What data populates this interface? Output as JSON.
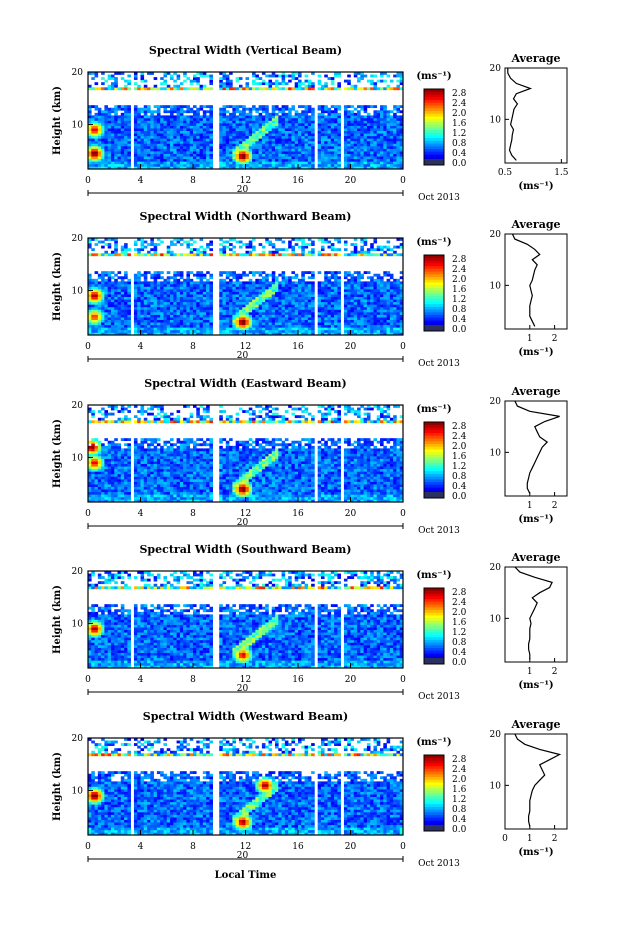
{
  "figure": {
    "xlabel": "Local Time",
    "date_label": "Oct 2013",
    "day_label": "20",
    "colorbar_unit": "(ms⁻¹)",
    "colorbar_ticks": [
      "0.0",
      "0.4",
      "0.8",
      "1.2",
      "1.6",
      "2.0",
      "2.4",
      "2.8"
    ],
    "ylabel": "Height (km)",
    "avg_title": "Average",
    "avg_xlabel": "(ms⁻¹)"
  },
  "chart_data": [
    {
      "type": "heatmap",
      "title": "Spectral Width (Vertical Beam)",
      "xlabel": "Local Time",
      "ylabel": "Height (km)",
      "xlim": [
        0,
        24
      ],
      "ylim": [
        1.5,
        20
      ],
      "x_ticks": [
        "0",
        "4",
        "8",
        "12",
        "16",
        "20",
        "0"
      ],
      "y_ticks": [
        "10",
        "20"
      ],
      "z_range": [
        0.0,
        2.8
      ],
      "z_unit": "ms⁻¹",
      "data_gaps_hours": [
        [
          3.3,
          3.6
        ],
        [
          5.9,
          6.1
        ],
        [
          9.6,
          9.9
        ],
        [
          17.3,
          17.6
        ],
        [
          19.3,
          19.6
        ],
        [
          20.9,
          21.1
        ]
      ],
      "hotspots": [
        {
          "time": 0.5,
          "height": 4.5,
          "value": 2.8
        },
        {
          "time": 0.5,
          "height": 9,
          "value": 2.4
        },
        {
          "time": 11.8,
          "height": 4,
          "value": 2.8
        }
      ],
      "average_profile": {
        "xlim": [
          0.5,
          1.6
        ],
        "x_ticks": [
          "0.5",
          "1.5"
        ],
        "y_ticks": [
          "10",
          "20"
        ],
        "height_km": [
          2,
          3,
          4,
          5,
          6,
          7,
          8,
          9,
          10,
          11,
          12,
          13,
          14,
          15,
          16,
          17,
          18,
          19,
          20
        ],
        "values": [
          0.7,
          0.62,
          0.58,
          0.6,
          0.62,
          0.63,
          0.65,
          0.6,
          0.62,
          0.64,
          0.66,
          0.72,
          0.65,
          0.7,
          0.95,
          0.7,
          0.6,
          0.55,
          0.55
        ]
      }
    },
    {
      "type": "heatmap",
      "title": "Spectral Width (Northward Beam)",
      "xlabel": "Local Time",
      "ylabel": "Height (km)",
      "xlim": [
        0,
        24
      ],
      "ylim": [
        1.5,
        20
      ],
      "x_ticks": [
        "0",
        "4",
        "8",
        "12",
        "16",
        "20",
        "0"
      ],
      "y_ticks": [
        "10",
        "20"
      ],
      "z_range": [
        0.0,
        2.8
      ],
      "z_unit": "ms⁻¹",
      "data_gaps_hours": [
        [
          3.3,
          3.6
        ],
        [
          5.9,
          6.1
        ],
        [
          9.6,
          9.9
        ],
        [
          17.3,
          17.6
        ],
        [
          19.3,
          19.6
        ],
        [
          20.9,
          21.1
        ]
      ],
      "hotspots": [
        {
          "time": 0.5,
          "height": 9,
          "value": 2.6
        },
        {
          "time": 0.5,
          "height": 5,
          "value": 2.2
        },
        {
          "time": 11.8,
          "height": 4,
          "value": 2.8
        }
      ],
      "average_profile": {
        "xlim": [
          0,
          2.5
        ],
        "x_ticks": [
          "1",
          "2"
        ],
        "y_ticks": [
          "10",
          "20"
        ],
        "height_km": [
          2,
          3,
          4,
          5,
          6,
          7,
          8,
          9,
          10,
          11,
          12,
          13,
          14,
          15,
          16,
          17,
          18,
          19,
          20
        ],
        "values": [
          1.2,
          1.1,
          1.0,
          1.0,
          1.0,
          1.05,
          1.1,
          1.05,
          1.0,
          1.1,
          1.15,
          1.2,
          1.3,
          1.1,
          1.4,
          1.2,
          0.9,
          0.4,
          0.3
        ]
      }
    },
    {
      "type": "heatmap",
      "title": "Spectral Width (Eastward Beam)",
      "xlabel": "Local Time",
      "ylabel": "Height (km)",
      "xlim": [
        0,
        24
      ],
      "ylim": [
        1.5,
        20
      ],
      "x_ticks": [
        "0",
        "4",
        "8",
        "12",
        "16",
        "20",
        "0"
      ],
      "y_ticks": [
        "10",
        "20"
      ],
      "z_range": [
        0.0,
        2.8
      ],
      "z_unit": "ms⁻¹",
      "data_gaps_hours": [
        [
          3.3,
          3.6
        ],
        [
          5.9,
          6.1
        ],
        [
          9.6,
          9.9
        ],
        [
          17.3,
          17.6
        ],
        [
          19.3,
          19.6
        ],
        [
          20.9,
          21.1
        ]
      ],
      "hotspots": [
        {
          "time": 0.3,
          "height": 12,
          "value": 2.8
        },
        {
          "time": 0.5,
          "height": 9,
          "value": 2.4
        },
        {
          "time": 11.8,
          "height": 4,
          "value": 2.8
        }
      ],
      "average_profile": {
        "xlim": [
          0,
          2.5
        ],
        "x_ticks": [
          "1",
          "2"
        ],
        "y_ticks": [
          "10",
          "20"
        ],
        "height_km": [
          2,
          3,
          4,
          5,
          6,
          7,
          8,
          9,
          10,
          11,
          12,
          13,
          14,
          15,
          16,
          17,
          18,
          19,
          20
        ],
        "values": [
          1.0,
          0.9,
          0.9,
          0.95,
          1.0,
          1.1,
          1.2,
          1.3,
          1.4,
          1.5,
          1.7,
          1.4,
          1.3,
          1.2,
          1.6,
          2.2,
          1.0,
          0.5,
          0.4
        ]
      }
    },
    {
      "type": "heatmap",
      "title": "Spectral Width (Southward Beam)",
      "xlabel": "Local Time",
      "ylabel": "Height (km)",
      "xlim": [
        0,
        24
      ],
      "ylim": [
        1.5,
        20
      ],
      "x_ticks": [
        "0",
        "4",
        "8",
        "12",
        "16",
        "20",
        "0"
      ],
      "y_ticks": [
        "10",
        "20"
      ],
      "z_range": [
        0.0,
        2.8
      ],
      "z_unit": "ms⁻¹",
      "data_gaps_hours": [
        [
          3.3,
          3.6
        ],
        [
          5.9,
          6.1
        ],
        [
          9.6,
          9.9
        ],
        [
          17.3,
          17.6
        ],
        [
          19.3,
          19.6
        ],
        [
          20.9,
          21.1
        ]
      ],
      "hotspots": [
        {
          "time": 0.5,
          "height": 9,
          "value": 2.6
        },
        {
          "time": 11.8,
          "height": 4,
          "value": 2.4
        }
      ],
      "average_profile": {
        "xlim": [
          0,
          2.5
        ],
        "x_ticks": [
          "1",
          "2"
        ],
        "y_ticks": [
          "10",
          "20"
        ],
        "height_km": [
          2,
          3,
          4,
          5,
          6,
          7,
          8,
          9,
          10,
          11,
          12,
          13,
          14,
          15,
          16,
          17,
          18,
          19,
          20
        ],
        "values": [
          1.0,
          1.0,
          0.95,
          0.95,
          1.0,
          1.0,
          1.0,
          1.05,
          1.0,
          1.1,
          1.2,
          1.3,
          1.1,
          1.4,
          1.8,
          1.9,
          1.2,
          0.6,
          0.4
        ]
      }
    },
    {
      "type": "heatmap",
      "title": "Spectral Width (Westward Beam)",
      "xlabel": "Local Time",
      "ylabel": "Height (km)",
      "xlim": [
        0,
        24
      ],
      "ylim": [
        1.5,
        20
      ],
      "x_ticks": [
        "0",
        "4",
        "8",
        "12",
        "16",
        "20",
        "0"
      ],
      "y_ticks": [
        "10",
        "20"
      ],
      "z_range": [
        0.0,
        2.8
      ],
      "z_unit": "ms⁻¹",
      "data_gaps_hours": [
        [
          3.3,
          3.6
        ],
        [
          5.9,
          6.1
        ],
        [
          9.6,
          9.9
        ],
        [
          17.3,
          17.6
        ],
        [
          19.3,
          19.6
        ],
        [
          20.9,
          21.1
        ]
      ],
      "hotspots": [
        {
          "time": 0.5,
          "height": 9,
          "value": 2.8
        },
        {
          "time": 11.8,
          "height": 4,
          "value": 2.6
        },
        {
          "time": 13.5,
          "height": 11,
          "value": 2.6
        }
      ],
      "average_profile": {
        "xlim": [
          0,
          2.5
        ],
        "x_ticks": [
          "0",
          "1",
          "2"
        ],
        "y_ticks": [
          "10",
          "20"
        ],
        "height_km": [
          2,
          3,
          4,
          5,
          6,
          7,
          8,
          9,
          10,
          11,
          12,
          13,
          14,
          15,
          16,
          17,
          18,
          19,
          20
        ],
        "values": [
          1.0,
          0.95,
          0.95,
          1.0,
          1.0,
          1.0,
          1.05,
          1.1,
          1.2,
          1.4,
          1.6,
          1.5,
          1.4,
          1.8,
          2.2,
          1.4,
          0.8,
          0.5,
          0.4
        ]
      }
    }
  ]
}
